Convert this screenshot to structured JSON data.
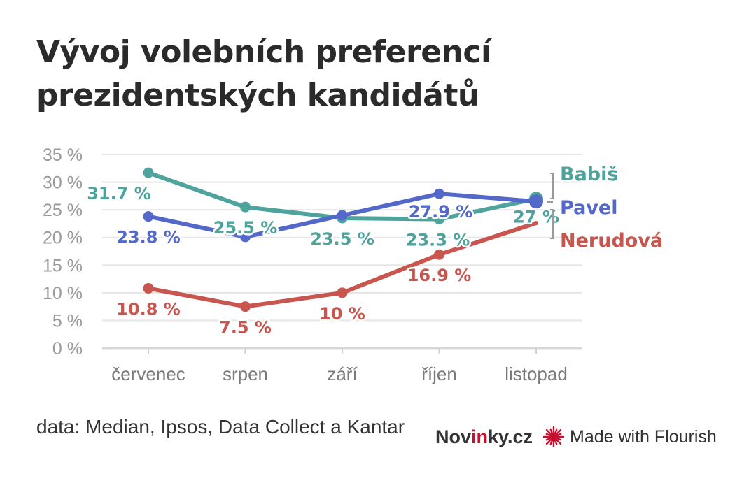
{
  "title_line1": "Vývoj volebních preferencí",
  "title_line2": "prezidentských kandidátů",
  "source": "data: Median, Ipsos, Data Collect a Kantar",
  "brand": {
    "name_part1": "Nov",
    "name_part2": "in",
    "name_part3": "ky.cz",
    "flourish": "Made with Flourish"
  },
  "colors": {
    "babis": "#4fa39d",
    "pavel": "#5468c9",
    "nerudova": "#c8564f",
    "grid": "#e6e6e6",
    "axis_text": "#9a9a9a",
    "flourish_mark": "#c8102e"
  },
  "chart_data": {
    "type": "line",
    "title": "Vývoj volebních preferencí prezidentských kandidátů",
    "categories": [
      "červenec",
      "srpen",
      "září",
      "říjen",
      "listopad"
    ],
    "ylim": [
      0,
      35
    ],
    "yticks": [
      0,
      5,
      10,
      15,
      20,
      25,
      30,
      35
    ],
    "ytick_labels": [
      "0 %",
      "5 %",
      "10 %",
      "15 %",
      "20 %",
      "25 %",
      "30 %",
      "35 %"
    ],
    "grid": true,
    "series": [
      {
        "name": "Babiš",
        "key": "babis",
        "values": [
          31.7,
          25.5,
          23.5,
          23.3,
          27
        ],
        "labels": [
          "31.7 %",
          "25.5 %",
          "23.5 %",
          "23.3 %",
          "27 %"
        ]
      },
      {
        "name": "Pavel",
        "key": "pavel",
        "values": [
          23.8,
          20.1,
          24.0,
          27.9,
          26.5
        ],
        "labels": [
          "23.8 %",
          null,
          null,
          "27.9 %",
          null
        ]
      },
      {
        "name": "Nerudová",
        "key": "nerudova",
        "values": [
          10.8,
          7.5,
          10,
          16.9,
          22.6
        ],
        "labels": [
          "10.8 %",
          "7.5 %",
          "10 %",
          "16.9 %",
          null
        ]
      }
    ]
  }
}
